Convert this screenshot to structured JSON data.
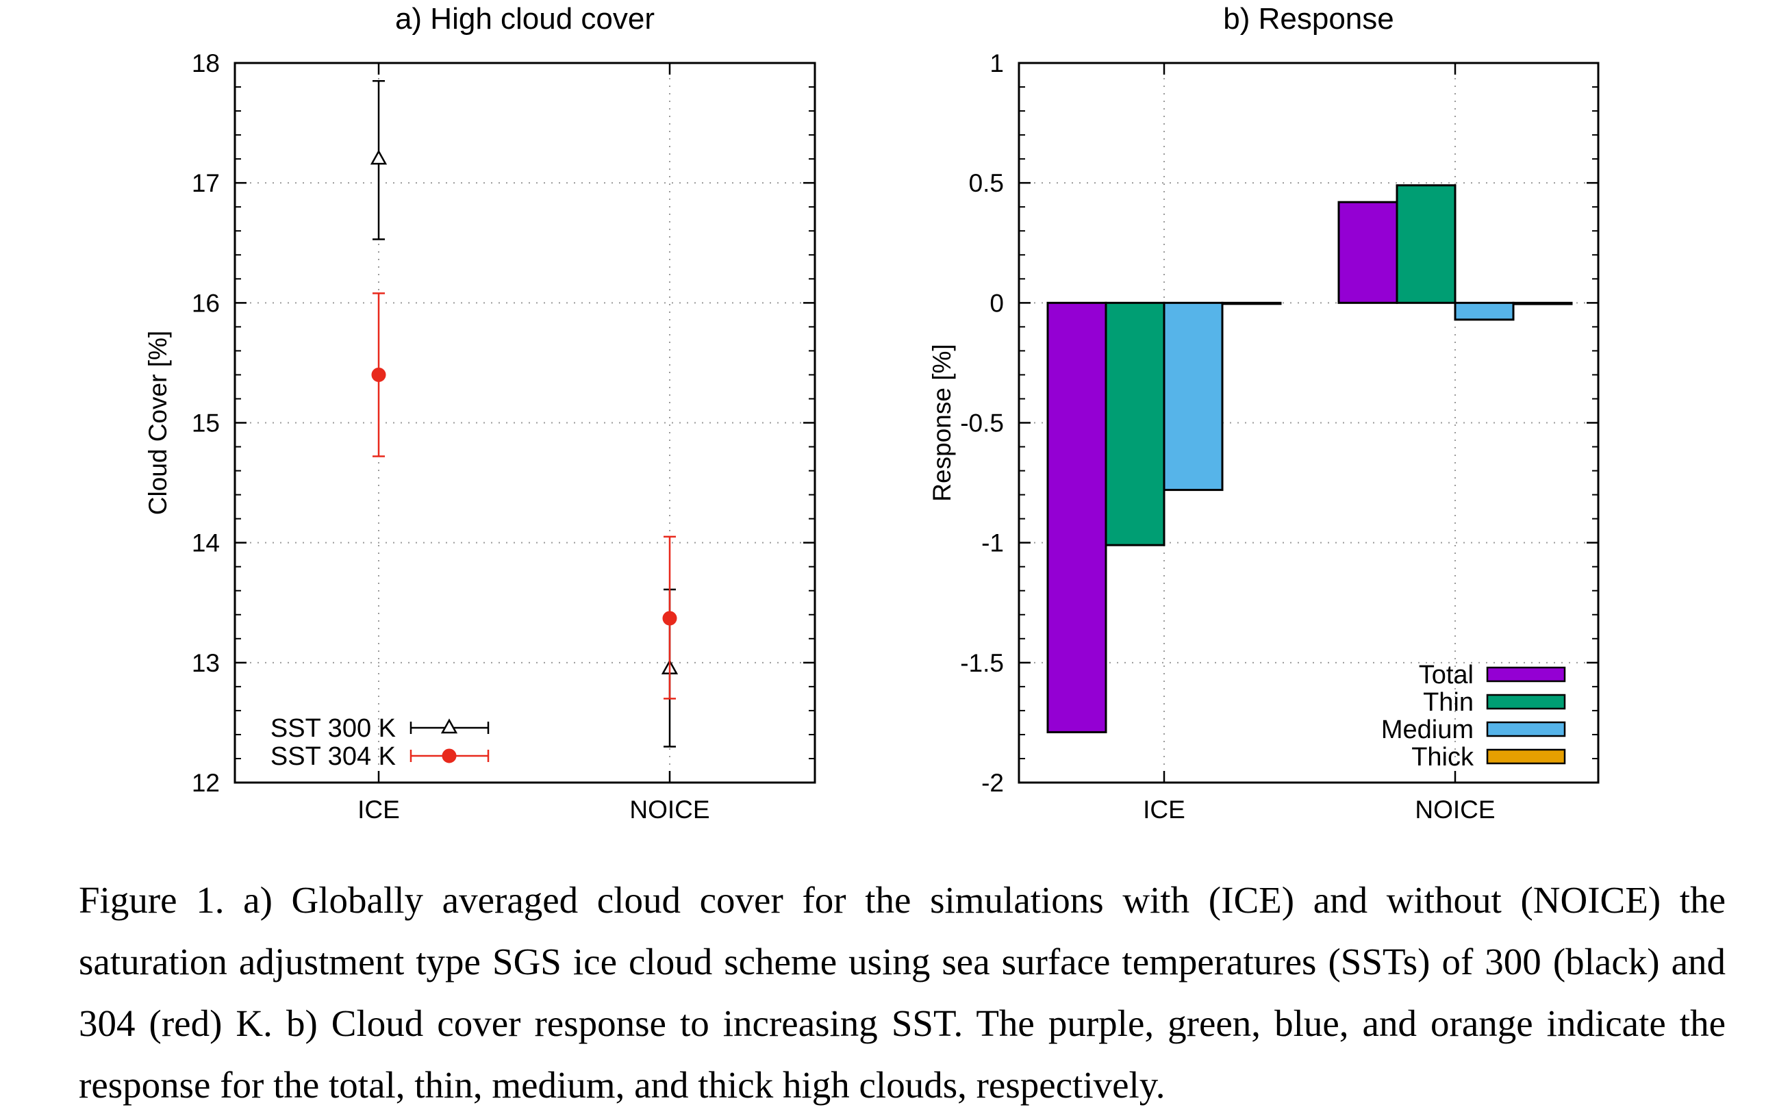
{
  "chart_data": [
    {
      "type": "scatter",
      "title": "a) High cloud cover",
      "xlabel": "",
      "ylabel": "Cloud Cover [%]",
      "categories": [
        "ICE",
        "NOICE"
      ],
      "ylim": [
        12,
        18
      ],
      "yticks": [
        "12",
        "13",
        "14",
        "15",
        "16",
        "17",
        "18"
      ],
      "grid": true,
      "legend_position": "bottom-left",
      "series": [
        {
          "name": "SST 300 K",
          "color": "#000000",
          "marker": "open-triangle",
          "values": [
            17.2,
            12.95
          ],
          "lower": [
            16.53,
            12.3
          ],
          "upper": [
            17.85,
            13.61
          ]
        },
        {
          "name": "SST 304 K",
          "color": "#e8291c",
          "marker": "filled-circle",
          "values": [
            15.4,
            13.37
          ],
          "lower": [
            14.72,
            12.7
          ],
          "upper": [
            16.08,
            14.05
          ]
        }
      ]
    },
    {
      "type": "bar",
      "title": "b) Response",
      "xlabel": "",
      "ylabel": "Response [%]",
      "categories": [
        "ICE",
        "NOICE"
      ],
      "ylim": [
        -2,
        1
      ],
      "yticks": [
        "-2",
        "-1.5",
        "-1",
        "-0.5",
        "0",
        "0.5",
        "1"
      ],
      "grid": true,
      "legend_position": "bottom-right",
      "series": [
        {
          "name": "Total",
          "color": "#9400d3",
          "values": [
            -1.79,
            0.42
          ]
        },
        {
          "name": "Thin",
          "color": "#009e73",
          "values": [
            -1.01,
            0.49
          ]
        },
        {
          "name": "Medium",
          "color": "#56b4e9",
          "values": [
            -0.78,
            -0.07
          ]
        },
        {
          "name": "Thick",
          "color": "#e69f00",
          "values": [
            0.0,
            -0.005
          ]
        }
      ]
    }
  ],
  "caption": "Figure 1. a) Globally averaged cloud cover for the simulations with (ICE) and without (NOICE) the saturation adjustment type SGS ice cloud scheme using sea surface temperatures (SSTs) of 300 (black) and 304 (red) K. b) Cloud cover response to increasing SST. The purple, green, blue, and orange indicate the response for the total, thin, medium, and thick high clouds, respectively."
}
